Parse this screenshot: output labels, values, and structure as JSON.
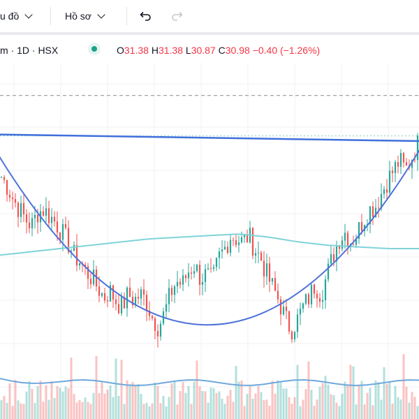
{
  "toolbar": {
    "chart_type_label": "u đồ",
    "profile_label": "Hồ sơ",
    "undo_icon": "undo-icon",
    "redo_icon": "redo-icon"
  },
  "legend": {
    "symbol_info": "m · 1D · HSX",
    "status_icon": "market-status-dot-icon",
    "open_label": "O",
    "open_value": "31.38",
    "high_label": "H",
    "high_value": "31.38",
    "low_label": "L",
    "low_value": "30.87",
    "close_label": "C",
    "close_value": "30.98",
    "change": "−0.40 (−1.26%)"
  },
  "colors": {
    "up": "#26a69a",
    "down": "#ef5350",
    "trendline": "#3f6fdb",
    "cup_curve": "#4f72d9",
    "moving_average": "#7fd3d8",
    "volume_ma": "#6fa8dc",
    "dashed_level": "#9598a1",
    "dotted_level": "#80cbc4"
  },
  "chart_data": {
    "type": "candlestick",
    "x_visible_range": "partial",
    "price_path": [
      33.0,
      32.7,
      32.3,
      32.0,
      31.7,
      31.5,
      31.9,
      32.0,
      31.8,
      31.6,
      31.3,
      31.0,
      30.6,
      30.4,
      30.1,
      29.9,
      29.6,
      29.3,
      29.5,
      29.2,
      29.0,
      29.4,
      29.2,
      29.4,
      29.2,
      28.7,
      28.4,
      28.8,
      29.4,
      29.8,
      29.7,
      30.1,
      30.3,
      29.9,
      30.0,
      29.8,
      30.5,
      30.8,
      31.2,
      31.1,
      31.0,
      31.2,
      30.8,
      30.5,
      30.0,
      29.6,
      29.2,
      28.7,
      28.3,
      28.6,
      29.0,
      29.3,
      29.7,
      29.4,
      30.0,
      30.6,
      31.1,
      31.3,
      31.0,
      31.3,
      31.7,
      32.0,
      32.1,
      32.5,
      32.9,
      33.2,
      33.5,
      33.2,
      33.6,
      34.0
    ],
    "moving_average": [
      30.6,
      30.7,
      30.8,
      30.9,
      31.0,
      31.1,
      31.15,
      31.2,
      31.25,
      31.15,
      31.0,
      30.9,
      30.85,
      30.8,
      30.8
    ],
    "trendline_start": 34.3,
    "trendline_end": 34.1,
    "dashed_level": 35.5,
    "dotted_level": 34.3,
    "cup_rim": 33.3,
    "cup_bottom": 28.3,
    "y_min": 27.5,
    "y_max": 36.5
  }
}
